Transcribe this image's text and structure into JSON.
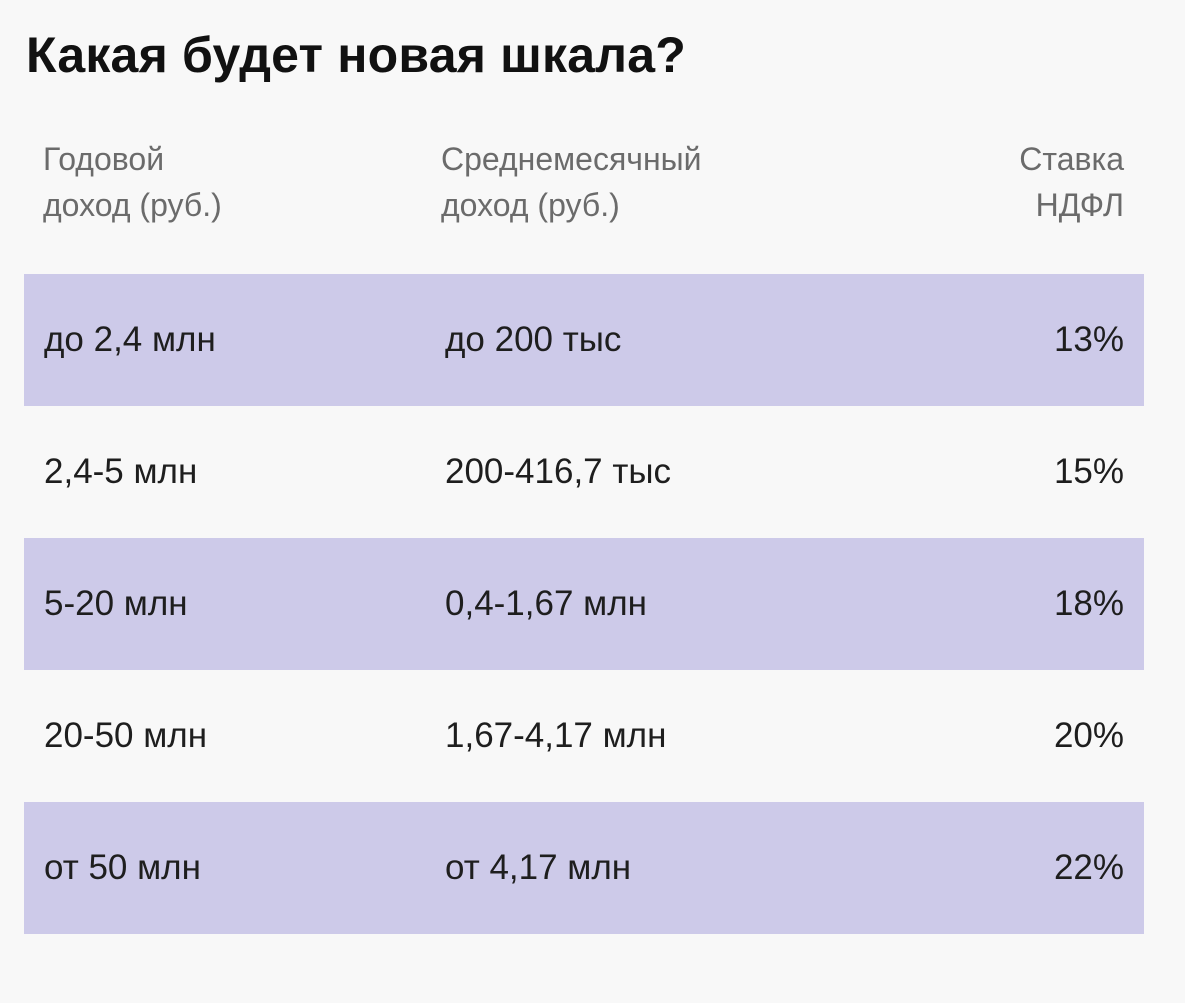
{
  "title": "Какая будет новая шкала?",
  "chart_data": {
    "type": "table",
    "columns": [
      "Годовой\nдоход (руб.)",
      "Среднемесячный\nдоход (руб.)",
      "Ставка\nНДФЛ"
    ],
    "rows": [
      [
        "до 2,4 млн",
        "до 200 тыс",
        "13%"
      ],
      [
        "2,4-5 млн",
        "200-416,7 тыс",
        "15%"
      ],
      [
        "5-20 млн",
        "0,4-1,67 млн",
        "18%"
      ],
      [
        "20-50 млн",
        "1,67-4,17 млн",
        "20%"
      ],
      [
        "от 50 млн",
        "от 4,17 млн",
        "22%"
      ]
    ],
    "rates_percent": [
      13,
      15,
      18,
      20,
      22
    ]
  },
  "colors": {
    "background": "#f8f8f8",
    "row_shade": "#cdcae9",
    "header_text": "#6b6b6b",
    "body_text": "#1e1e1e"
  }
}
